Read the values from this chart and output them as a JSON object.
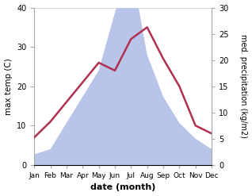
{
  "months": [
    "Jan",
    "Feb",
    "Mar",
    "Apr",
    "May",
    "Jun",
    "Jul",
    "Aug",
    "Sep",
    "Oct",
    "Nov",
    "Dec"
  ],
  "temperature": [
    7,
    11,
    16,
    21,
    26,
    24,
    32,
    35,
    27,
    20,
    10,
    8
  ],
  "precipitation": [
    2,
    3,
    8,
    13,
    18,
    29,
    38,
    21,
    13,
    8,
    5,
    3
  ],
  "temp_color": "#b03050",
  "precip_color": "#b8c4e8",
  "temp_ylim": [
    0,
    40
  ],
  "precip_ylim": [
    0,
    30
  ],
  "xlabel": "date (month)",
  "ylabel_left": "max temp (C)",
  "ylabel_right": "med. precipitation (kg/m2)",
  "fig_width": 3.18,
  "fig_height": 2.47,
  "dpi": 100
}
